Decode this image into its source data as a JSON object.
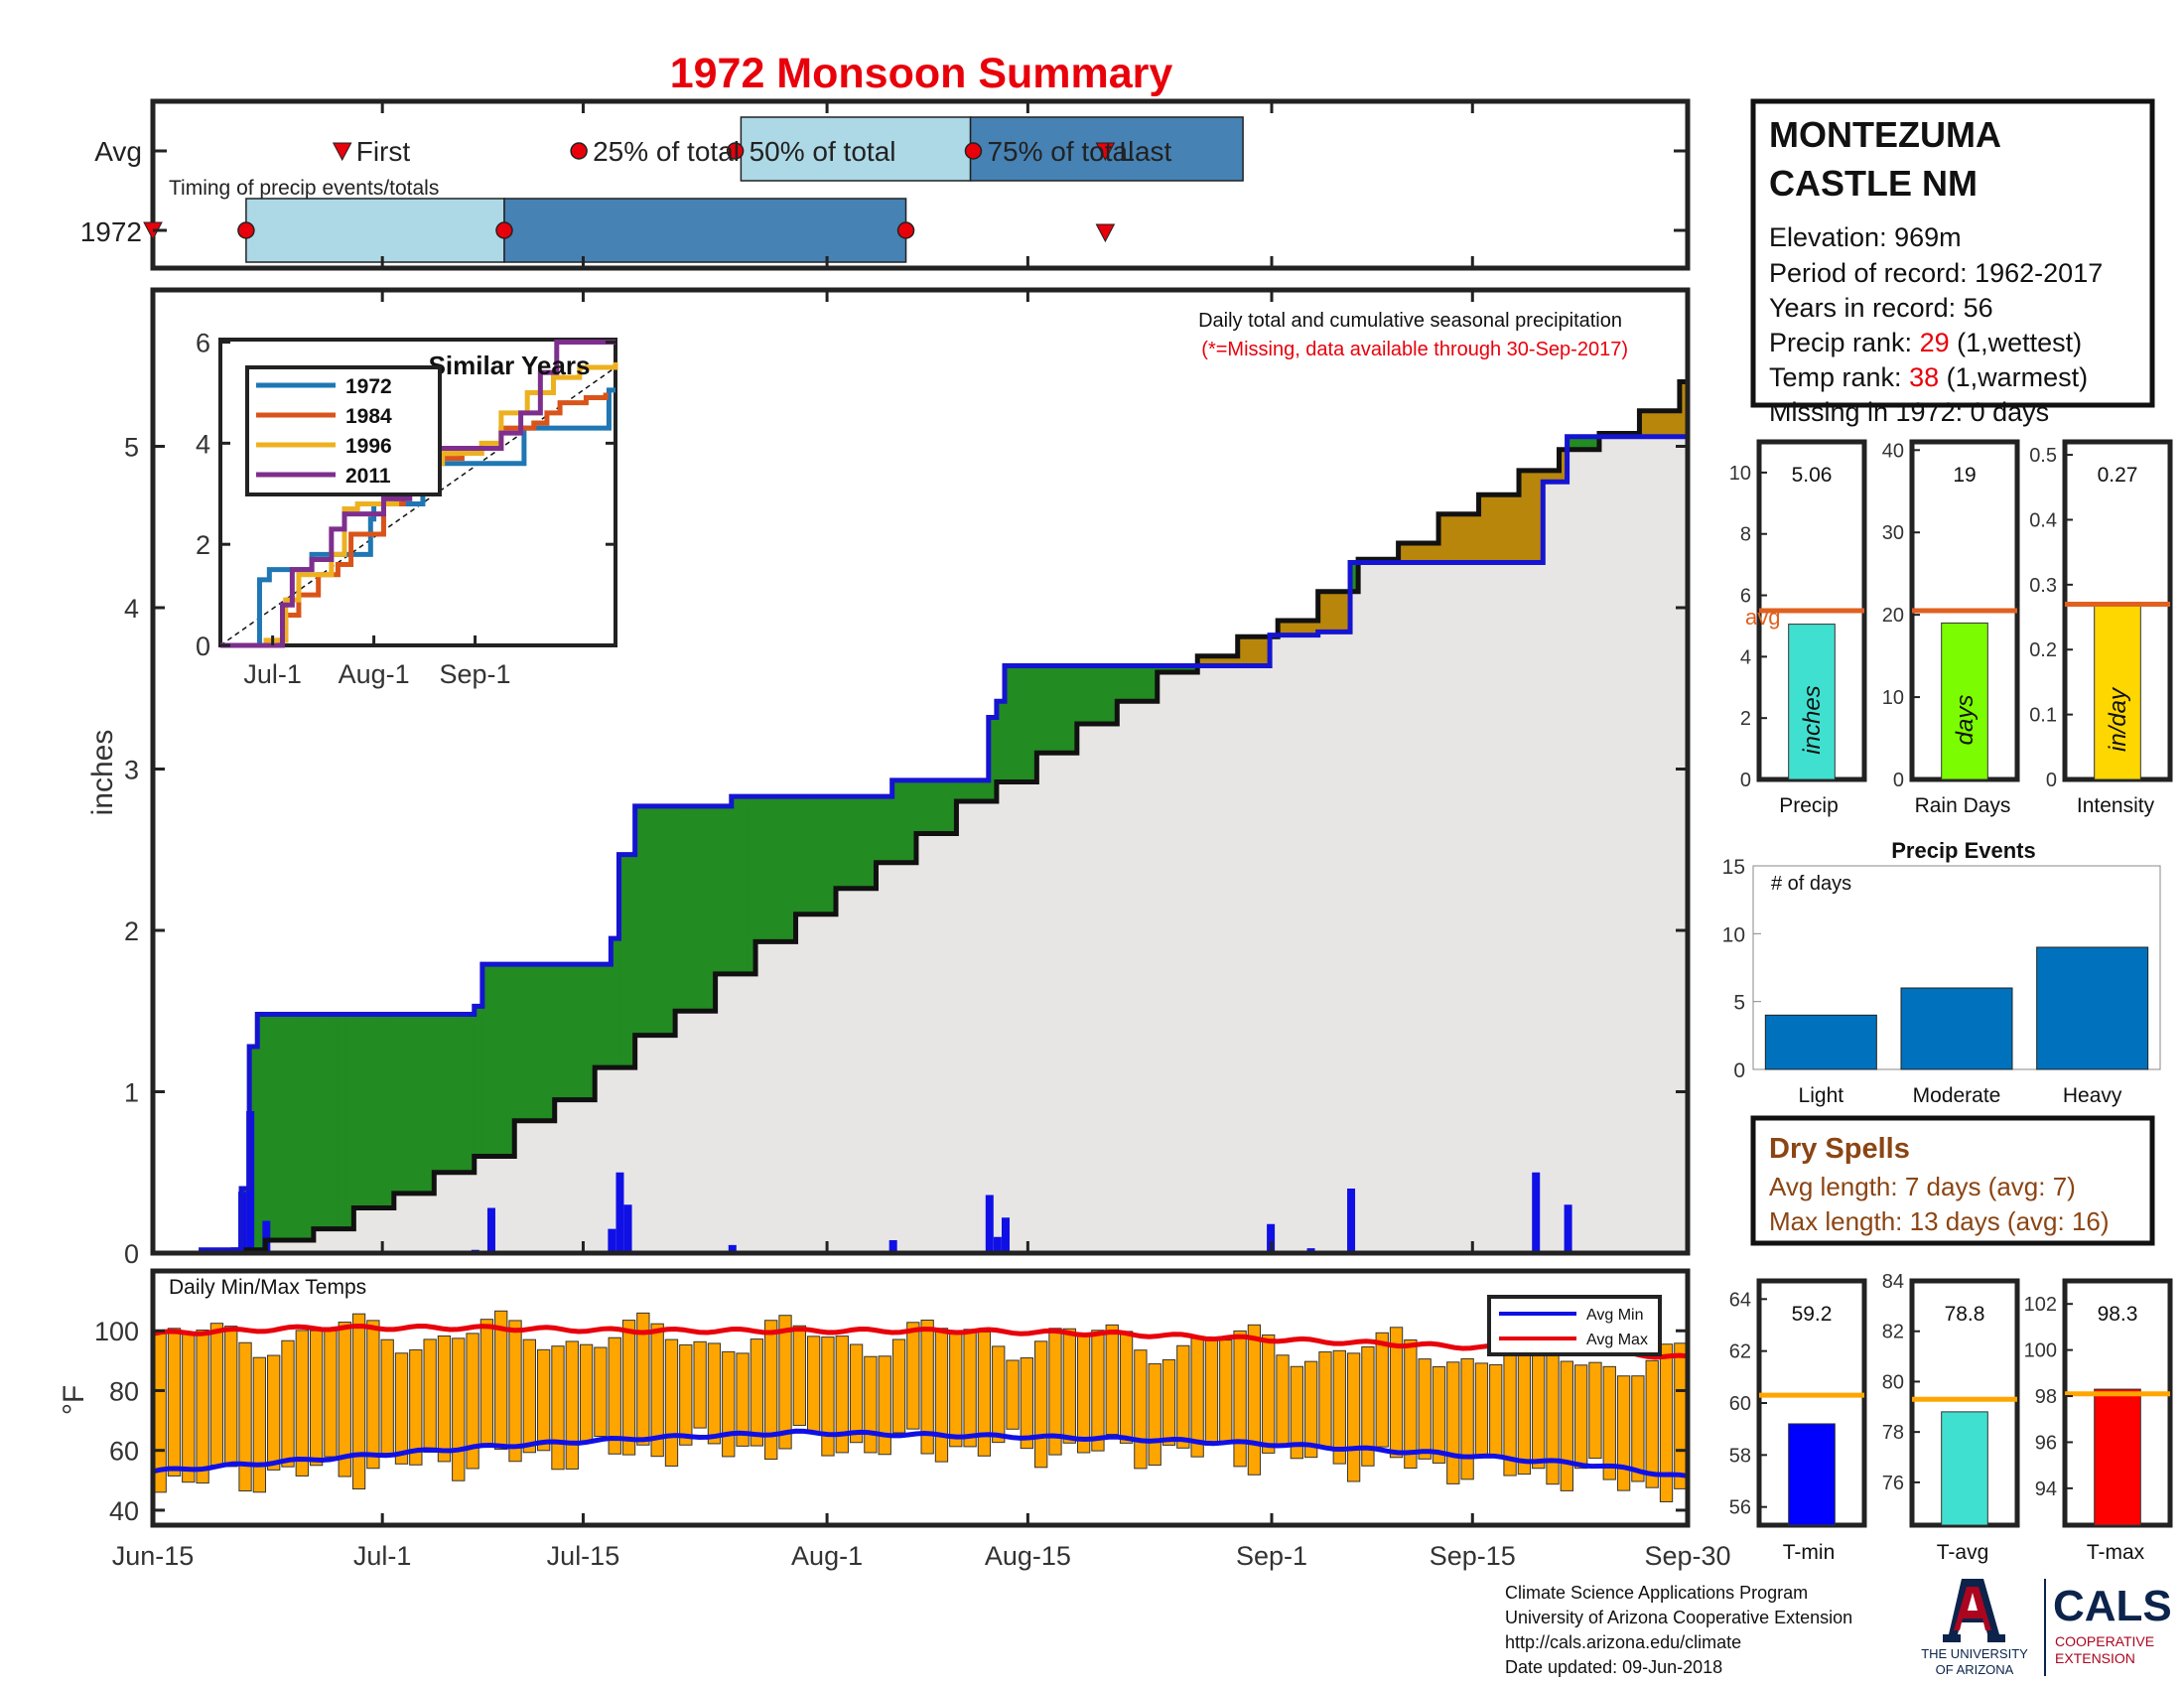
{
  "title": "1972 Monsoon Summary",
  "colors": {
    "title": "#e8000b",
    "bar_blue": "#1010e6",
    "cum_line": "#1414d2",
    "green_fill": "#228b22",
    "brown_fill": "#b8860b",
    "gray_fill": "#e8e6e4",
    "orange_bar": "#ffa500",
    "avg_line": "#e06020",
    "red": "#e8000b",
    "timing_light": "#add8e6",
    "timing_dark": "#4682b4",
    "similar_1972": "#1f77b4",
    "similar_1984": "#d9541a",
    "similar_1996": "#edb120",
    "similar_2011": "#7e2f8e",
    "dry_spells": "#8b4513"
  },
  "timing": {
    "row_avg": "Avg",
    "row_year": "1972",
    "subtitle": "Timing of precip events/totals",
    "first": "First",
    "last": "Last",
    "pct25": "25% of total",
    "pct50": "50% of total",
    "pct75": "75% of total",
    "avg_markers_days": {
      "first": 19,
      "p25": 41,
      "p50": 57,
      "p75": 76,
      "last": 88
    },
    "year_markers_days": {
      "first": -0.5,
      "p25": 8,
      "p50": 30,
      "p75": 64,
      "last": 88
    }
  },
  "info": {
    "station_line1": "MONTEZUMA",
    "station_line2": "CASTLE NM",
    "elevation": "Elevation: 969m",
    "period": "Period of record: 1962-2017",
    "years": "Years in record: 56",
    "precip_rank_label": "Precip rank: ",
    "precip_rank_value": "29",
    "precip_rank_suffix": " (1,wettest)",
    "temp_rank_label": "Temp rank: ",
    "temp_rank_value": "38",
    "temp_rank_suffix": " (1,warmest)",
    "missing": "Missing in 1972: 0 days"
  },
  "main_panel": {
    "note1": "Daily total and cumulative seasonal precipitation",
    "note2": "(*=Missing, data available through 30-Sep-2017)",
    "ylabel": "inches",
    "xticks": [
      "Jun-15",
      "Jul-1",
      "Jul-15",
      "Aug-1",
      "Aug-15",
      "Sep-1",
      "Sep-15",
      "Sep-30"
    ]
  },
  "temps_panel": {
    "title": "Daily Min/Max Temps",
    "ylabel": "°F",
    "legend_min": "Avg Min",
    "legend_max": "Avg Max"
  },
  "similar": {
    "title": "Similar Years",
    "years": [
      "1972",
      "1984",
      "1996",
      "2011"
    ],
    "xticks": [
      "Jul-1",
      "Aug-1",
      "Sep-1"
    ]
  },
  "summary_bars": {
    "precip": {
      "value": "5.06",
      "unit": "inches",
      "label": "Precip",
      "avg_label": "avg"
    },
    "raindays": {
      "value": "19",
      "unit": "days",
      "label": "Rain Days"
    },
    "intensity": {
      "value": "0.27",
      "unit": "in/day",
      "label": "Intensity"
    }
  },
  "events": {
    "title": "Precip Events",
    "ylabel": "# of days",
    "categories": [
      "Light",
      "Moderate",
      "Heavy"
    ]
  },
  "dry_spells": {
    "title": "Dry Spells",
    "avg": "Avg length: 7 days (avg: 7)",
    "max": "Max length: 13 days (avg: 16)"
  },
  "temp_bars": {
    "tmin": {
      "value": "59.2",
      "label": "T-min"
    },
    "tavg": {
      "value": "78.8",
      "label": "T-avg"
    },
    "tmax": {
      "value": "98.3",
      "label": "T-max"
    }
  },
  "footer": {
    "line1": "Climate Science Applications Program",
    "line2": "University of Arizona Cooperative Extension",
    "line3": "http://cals.arizona.edu/climate",
    "line4": " Date updated: 09-Jun-2018",
    "ua_line1": "THE UNIVERSITY",
    "ua_line2": "OF ARIZONA",
    "cals": "CALS",
    "coop1": "COOPERATIVE",
    "coop2": "EXTENSION"
  },
  "chart_data": [
    {
      "type": "area",
      "title": "Daily total and cumulative seasonal precipitation",
      "ylabel": "inches",
      "xlim": [
        "Jun-15",
        "Sep-30"
      ],
      "ylim": [
        0,
        6
      ],
      "yticks": [
        0,
        1,
        2,
        3,
        4,
        5
      ],
      "series": [
        {
          "name": "1972",
          "steps": [
            [
              0,
              0
            ],
            [
              6,
              0.02
            ],
            [
              9,
              0.02
            ],
            [
              11,
              0.4
            ],
            [
              12,
              1.28
            ],
            [
              13,
              1.48
            ],
            [
              39,
              1.48
            ],
            [
              40,
              1.53
            ],
            [
              41,
              1.79
            ],
            [
              56,
              1.79
            ],
            [
              57,
              1.95
            ],
            [
              58,
              2.47
            ],
            [
              60,
              2.77
            ],
            [
              71,
              2.77
            ],
            [
              72,
              2.83
            ],
            [
              91,
              2.83
            ],
            [
              92,
              2.93
            ],
            [
              103,
              2.93
            ],
            [
              104,
              3.32
            ],
            [
              105,
              3.42
            ],
            [
              106,
              3.64
            ],
            [
              138,
              3.64
            ],
            [
              139,
              3.83
            ],
            [
              144,
              3.83
            ],
            [
              145,
              3.85
            ],
            [
              148,
              3.85
            ],
            [
              149,
              4.28
            ],
            [
              172,
              4.28
            ],
            [
              173,
              4.78
            ],
            [
              175,
              4.78
            ],
            [
              176,
              5.06
            ],
            [
              191,
              5.06
            ]
          ]
        },
        {
          "name": "avg",
          "steps": [
            [
              0,
              0.0
            ],
            [
              10,
              0.02
            ],
            [
              14,
              0.08
            ],
            [
              20,
              0.15
            ],
            [
              25,
              0.28
            ],
            [
              30,
              0.37
            ],
            [
              35,
              0.5
            ],
            [
              40,
              0.6
            ],
            [
              45,
              0.82
            ],
            [
              50,
              0.95
            ],
            [
              55,
              1.15
            ],
            [
              60,
              1.35
            ],
            [
              65,
              1.5
            ],
            [
              70,
              1.73
            ],
            [
              75,
              1.93
            ],
            [
              80,
              2.1
            ],
            [
              85,
              2.26
            ],
            [
              90,
              2.42
            ],
            [
              95,
              2.6
            ],
            [
              100,
              2.8
            ],
            [
              105,
              2.92
            ],
            [
              110,
              3.1
            ],
            [
              115,
              3.28
            ],
            [
              120,
              3.42
            ],
            [
              125,
              3.6
            ],
            [
              130,
              3.7
            ],
            [
              135,
              3.82
            ],
            [
              140,
              3.92
            ],
            [
              145,
              4.1
            ],
            [
              150,
              4.3
            ],
            [
              155,
              4.4
            ],
            [
              160,
              4.58
            ],
            [
              165,
              4.7
            ],
            [
              170,
              4.85
            ],
            [
              175,
              4.98
            ],
            [
              180,
              5.08
            ],
            [
              185,
              5.22
            ],
            [
              190,
              5.4
            ],
            [
              191,
              5.47
            ]
          ]
        }
      ],
      "daily_bars": [
        [
          11,
          0.38
        ],
        [
          12,
          0.88
        ],
        [
          14,
          0.2
        ],
        [
          40,
          0.02
        ],
        [
          42,
          0.28
        ],
        [
          57,
          0.15
        ],
        [
          58,
          0.5
        ],
        [
          59,
          0.3
        ],
        [
          72,
          0.05
        ],
        [
          92,
          0.08
        ],
        [
          104,
          0.36
        ],
        [
          105,
          0.1
        ],
        [
          106,
          0.22
        ],
        [
          139,
          0.18
        ],
        [
          144,
          0.03
        ],
        [
          149,
          0.4
        ],
        [
          172,
          0.5
        ],
        [
          176,
          0.3
        ]
      ]
    },
    {
      "type": "bar",
      "title": "Daily Min/Max Temps",
      "ylabel": "°F",
      "ylim": [
        35,
        120
      ],
      "yticks": [
        40,
        60,
        80,
        100
      ],
      "series": [
        {
          "name": "Avg Min",
          "anchors": [
            [
              0,
              53
            ],
            [
              20,
              57
            ],
            [
              40,
              61
            ],
            [
              60,
              64
            ],
            [
              80,
              66
            ],
            [
              100,
              65
            ],
            [
              120,
              64
            ],
            [
              140,
              62
            ],
            [
              160,
              59
            ],
            [
              180,
              55
            ],
            [
              191,
              51
            ]
          ]
        },
        {
          "name": "Avg Max",
          "anchors": [
            [
              0,
              99
            ],
            [
              20,
              101
            ],
            [
              40,
              101
            ],
            [
              60,
              100
            ],
            [
              80,
              100
            ],
            [
              100,
              100
            ],
            [
              120,
              99
            ],
            [
              140,
              97
            ],
            [
              160,
              95
            ],
            [
              180,
              93
            ],
            [
              191,
              91
            ]
          ]
        }
      ]
    },
    {
      "type": "line",
      "title": "Similar Years",
      "ylim": [
        0,
        6
      ],
      "yticks": [
        0,
        2,
        4,
        6
      ],
      "series": [
        {
          "name": "1972",
          "points": [
            [
              0,
              0
            ],
            [
              10,
              0
            ],
            [
              12,
              1.3
            ],
            [
              15,
              1.5
            ],
            [
              26,
              1.5
            ],
            [
              28,
              1.8
            ],
            [
              44,
              1.8
            ],
            [
              46,
              2.5
            ],
            [
              47,
              2.8
            ],
            [
              60,
              2.8
            ],
            [
              62,
              3.3
            ],
            [
              64,
              3.6
            ],
            [
              91,
              3.6
            ],
            [
              93,
              4.3
            ],
            [
              117,
              4.3
            ],
            [
              119,
              5.05
            ],
            [
              121,
              5.05
            ]
          ]
        },
        {
          "name": "1984",
          "points": [
            [
              0,
              0
            ],
            [
              18,
              0.1
            ],
            [
              20,
              0.6
            ],
            [
              24,
              1.0
            ],
            [
              30,
              1.4
            ],
            [
              36,
              1.6
            ],
            [
              40,
              2.2
            ],
            [
              50,
              2.8
            ],
            [
              56,
              3.3
            ],
            [
              64,
              3.7
            ],
            [
              74,
              3.8
            ],
            [
              80,
              3.9
            ],
            [
              86,
              4.3
            ],
            [
              96,
              4.4
            ],
            [
              100,
              4.6
            ],
            [
              104,
              4.8
            ],
            [
              112,
              4.9
            ],
            [
              118,
              5.0
            ]
          ]
        },
        {
          "name": "1996",
          "points": [
            [
              0,
              0
            ],
            [
              14,
              0.1
            ],
            [
              20,
              0.9
            ],
            [
              24,
              1.4
            ],
            [
              34,
              1.8
            ],
            [
              38,
              2.7
            ],
            [
              42,
              2.8
            ],
            [
              54,
              3.2
            ],
            [
              60,
              3.6
            ],
            [
              68,
              3.8
            ],
            [
              80,
              4.0
            ],
            [
              86,
              4.6
            ],
            [
              94,
              5.0
            ],
            [
              102,
              5.3
            ],
            [
              110,
              5.5
            ],
            [
              121,
              5.6
            ]
          ]
        },
        {
          "name": "2011",
          "points": [
            [
              0,
              0
            ],
            [
              16,
              0
            ],
            [
              19,
              0.8
            ],
            [
              22,
              1.5
            ],
            [
              28,
              1.7
            ],
            [
              34,
              2.3
            ],
            [
              38,
              2.6
            ],
            [
              50,
              2.9
            ],
            [
              58,
              3.5
            ],
            [
              66,
              3.9
            ],
            [
              80,
              3.9
            ],
            [
              86,
              4.2
            ],
            [
              92,
              4.6
            ],
            [
              98,
              5.4
            ],
            [
              103,
              6.0
            ],
            [
              121,
              6.0
            ]
          ]
        }
      ]
    },
    {
      "type": "bar",
      "title": "Precip",
      "categories": [
        "Precip"
      ],
      "values": [
        5.06
      ],
      "avg": 5.5,
      "ylim": [
        0,
        11
      ],
      "ylabel": "inches"
    },
    {
      "type": "bar",
      "title": "Rain Days",
      "categories": [
        "Rain Days"
      ],
      "values": [
        19
      ],
      "avg": 20.5,
      "ylim": [
        0,
        41
      ],
      "ylabel": "days"
    },
    {
      "type": "bar",
      "title": "Intensity",
      "categories": [
        "Intensity"
      ],
      "values": [
        0.27
      ],
      "avg": 0.27,
      "ylim": [
        0,
        0.52
      ],
      "ylabel": "in/day"
    },
    {
      "type": "bar",
      "title": "Precip Events",
      "categories": [
        "Light",
        "Moderate",
        "Heavy"
      ],
      "values": [
        4,
        6,
        9
      ],
      "ylim": [
        0,
        15
      ],
      "ylabel": "# of days"
    },
    {
      "type": "bar",
      "title": "T-min",
      "categories": [
        "T-min"
      ],
      "values": [
        59.2
      ],
      "avg": 60.3,
      "ylim": [
        55.3,
        64.7
      ]
    },
    {
      "type": "bar",
      "title": "T-avg",
      "categories": [
        "T-avg"
      ],
      "values": [
        78.8
      ],
      "avg": 79.3,
      "ylim": [
        74.3,
        84.0
      ]
    },
    {
      "type": "bar",
      "title": "T-max",
      "categories": [
        "T-max"
      ],
      "values": [
        98.3
      ],
      "avg": 98.1,
      "ylim": [
        92.4,
        103.0
      ]
    }
  ]
}
